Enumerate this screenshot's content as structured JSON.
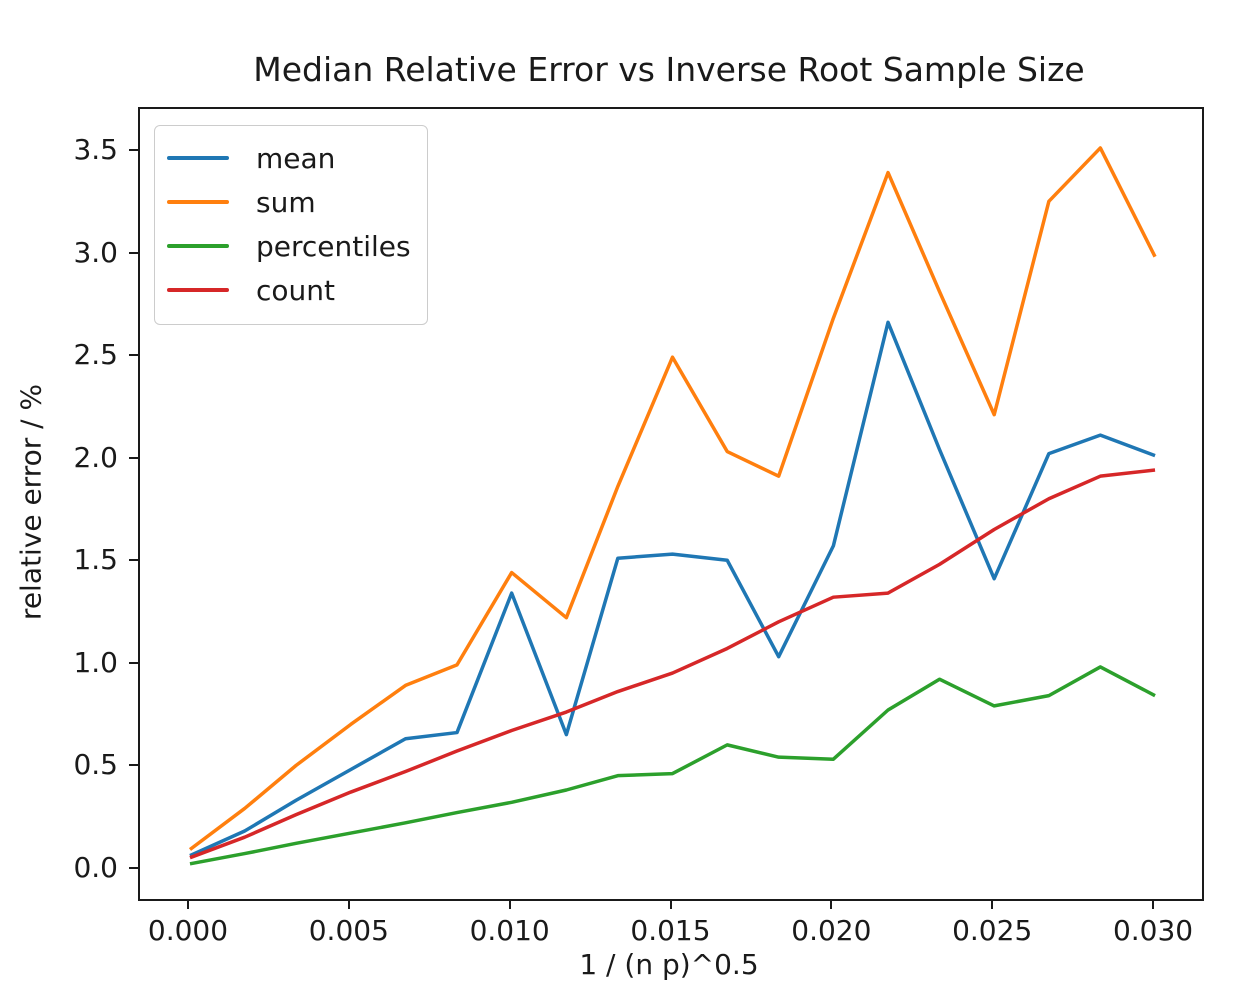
{
  "title": "Median Relative Error vs Inverse Root Sample Size",
  "chart_data": {
    "type": "line",
    "title": "Median Relative Error vs Inverse Root Sample Size",
    "xlabel": "1 / (n p)^0.5",
    "ylabel": "relative error / %",
    "xlim": [
      -0.001554,
      0.03146
    ],
    "ylim": [
      -0.1414,
      3.71
    ],
    "grid": false,
    "legend_position": "upper left",
    "xticks": {
      "values": [
        0.0,
        0.005,
        0.01,
        0.015,
        0.02,
        0.025,
        0.03
      ],
      "labels": [
        "0.000",
        "0.005",
        "0.010",
        "0.015",
        "0.020",
        "0.025",
        "0.030"
      ]
    },
    "yticks": {
      "values": [
        0.0,
        0.5,
        1.0,
        1.5,
        2.0,
        2.5,
        3.0,
        3.5
      ],
      "labels": [
        "0.0",
        "0.5",
        "1.0",
        "1.5",
        "2.0",
        "2.5",
        "3.0",
        "3.5"
      ]
    },
    "x": [
      0.0,
      0.0017,
      0.0033,
      0.005,
      0.0067,
      0.0083,
      0.01,
      0.0117,
      0.0133,
      0.015,
      0.0167,
      0.0183,
      0.02,
      0.0217,
      0.0233,
      0.025,
      0.0267,
      0.0283,
      0.03
    ],
    "series": [
      {
        "name": "mean",
        "color": "#1f77b4",
        "values": [
          0.07,
          0.19,
          0.34,
          0.49,
          0.64,
          0.67,
          1.35,
          0.66,
          1.52,
          1.54,
          1.51,
          1.04,
          1.58,
          2.67,
          2.05,
          1.42,
          2.03,
          2.12,
          2.02
        ]
      },
      {
        "name": "sum",
        "color": "#ff7f0e",
        "values": [
          0.1,
          0.3,
          0.51,
          0.71,
          0.9,
          1.0,
          1.45,
          1.23,
          1.87,
          2.5,
          2.04,
          1.92,
          2.69,
          3.4,
          2.82,
          2.22,
          3.26,
          3.52,
          2.99
        ]
      },
      {
        "name": "percentiles",
        "color": "#2ca02c",
        "values": [
          0.03,
          0.08,
          0.13,
          0.18,
          0.23,
          0.28,
          0.33,
          0.39,
          0.46,
          0.47,
          0.61,
          0.55,
          0.54,
          0.78,
          0.93,
          0.8,
          0.85,
          0.99,
          0.85
        ]
      },
      {
        "name": "count",
        "color": "#d62728",
        "values": [
          0.06,
          0.16,
          0.27,
          0.38,
          0.48,
          0.58,
          0.68,
          0.77,
          0.87,
          0.96,
          1.08,
          1.21,
          1.33,
          1.35,
          1.49,
          1.66,
          1.81,
          1.92,
          1.95
        ]
      }
    ]
  },
  "legend": {
    "entries": [
      {
        "label": "mean"
      },
      {
        "label": "sum"
      },
      {
        "label": "percentiles"
      },
      {
        "label": "count"
      }
    ]
  },
  "frame_color": "#1a1a1a",
  "background_color": "#ffffff"
}
